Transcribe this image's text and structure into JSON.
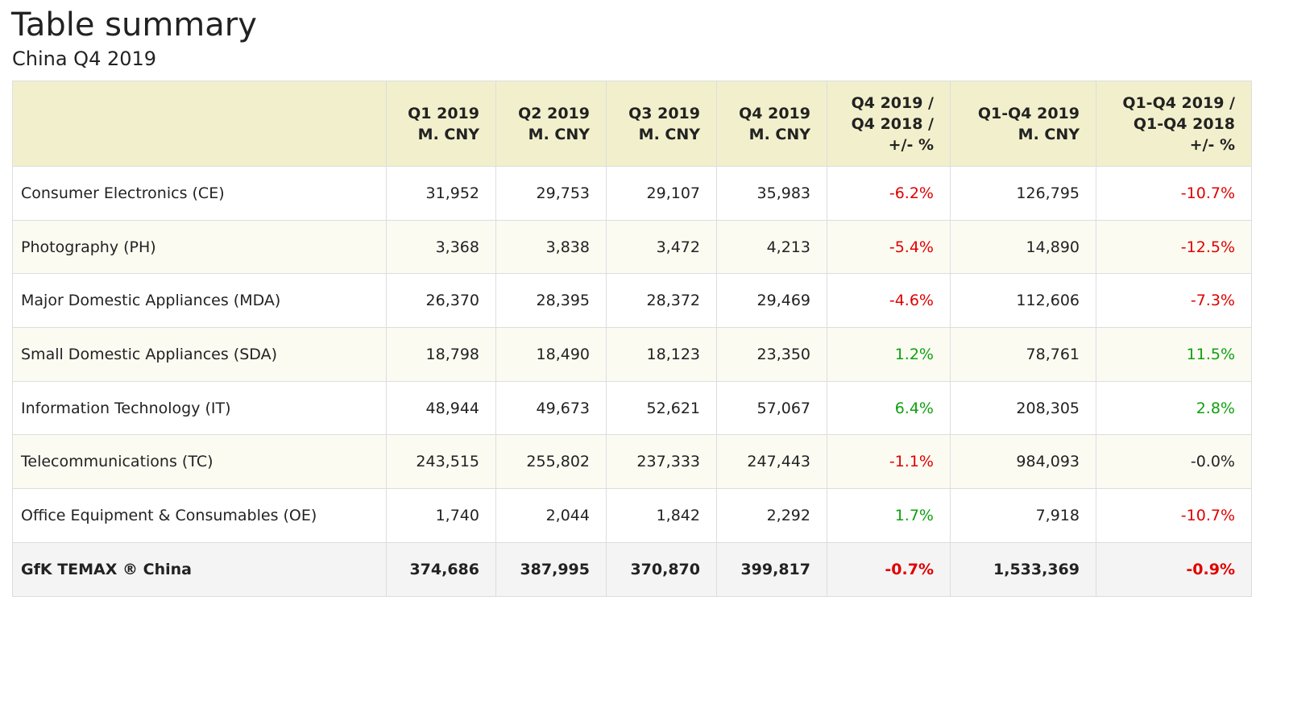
{
  "title": "Table summary",
  "subtitle": "China Q4 2019",
  "colors": {
    "negative": "#e00000",
    "positive": "#10a010",
    "header_bg": "#f2f0cc"
  },
  "columns": [
    [
      ""
    ],
    [
      "Q1 2019",
      "M. CNY"
    ],
    [
      "Q2 2019",
      "M. CNY"
    ],
    [
      "Q3 2019",
      "M. CNY"
    ],
    [
      "Q4 2019",
      "M. CNY"
    ],
    [
      "Q4 2019 /",
      "Q4 2018 /",
      "+/- %"
    ],
    [
      "Q1-Q4 2019",
      "M. CNY"
    ],
    [
      "Q1-Q4 2019 /",
      "Q1-Q4 2018",
      "+/- %"
    ]
  ],
  "rows": [
    {
      "label": "Consumer Electronics (CE)",
      "values": [
        "31,952",
        "29,753",
        "29,107",
        "35,983",
        "-6.2%",
        "126,795",
        "-10.7%"
      ],
      "tones": [
        "",
        "",
        "",
        "",
        "neg",
        "",
        "neg"
      ]
    },
    {
      "label": "Photography (PH)",
      "values": [
        "3,368",
        "3,838",
        "3,472",
        "4,213",
        "-5.4%",
        "14,890",
        "-12.5%"
      ],
      "tones": [
        "",
        "",
        "",
        "",
        "neg",
        "",
        "neg"
      ]
    },
    {
      "label": "Major Domestic Appliances (MDA)",
      "values": [
        "26,370",
        "28,395",
        "28,372",
        "29,469",
        "-4.6%",
        "112,606",
        "-7.3%"
      ],
      "tones": [
        "",
        "",
        "",
        "",
        "neg",
        "",
        "neg"
      ]
    },
    {
      "label": "Small Domestic Appliances (SDA)",
      "values": [
        "18,798",
        "18,490",
        "18,123",
        "23,350",
        "1.2%",
        "78,761",
        "11.5%"
      ],
      "tones": [
        "",
        "",
        "",
        "",
        "pos",
        "",
        "pos"
      ]
    },
    {
      "label": "Information Technology (IT)",
      "values": [
        "48,944",
        "49,673",
        "52,621",
        "57,067",
        "6.4%",
        "208,305",
        "2.8%"
      ],
      "tones": [
        "",
        "",
        "",
        "",
        "pos",
        "",
        "pos"
      ]
    },
    {
      "label": "Telecommunications (TC)",
      "values": [
        "243,515",
        "255,802",
        "237,333",
        "247,443",
        "-1.1%",
        "984,093",
        "-0.0%"
      ],
      "tones": [
        "",
        "",
        "",
        "",
        "neg",
        "",
        ""
      ]
    },
    {
      "label": "Office Equipment & Consumables (OE)",
      "values": [
        "1,740",
        "2,044",
        "1,842",
        "2,292",
        "1.7%",
        "7,918",
        "-10.7%"
      ],
      "tones": [
        "",
        "",
        "",
        "",
        "pos",
        "",
        "neg"
      ]
    }
  ],
  "total": {
    "label": "GfK TEMAX ® China",
    "values": [
      "374,686",
      "387,995",
      "370,870",
      "399,817",
      "-0.7%",
      "1,533,369",
      "-0.9%"
    ],
    "tones": [
      "",
      "",
      "",
      "",
      "neg",
      "",
      "neg"
    ]
  }
}
